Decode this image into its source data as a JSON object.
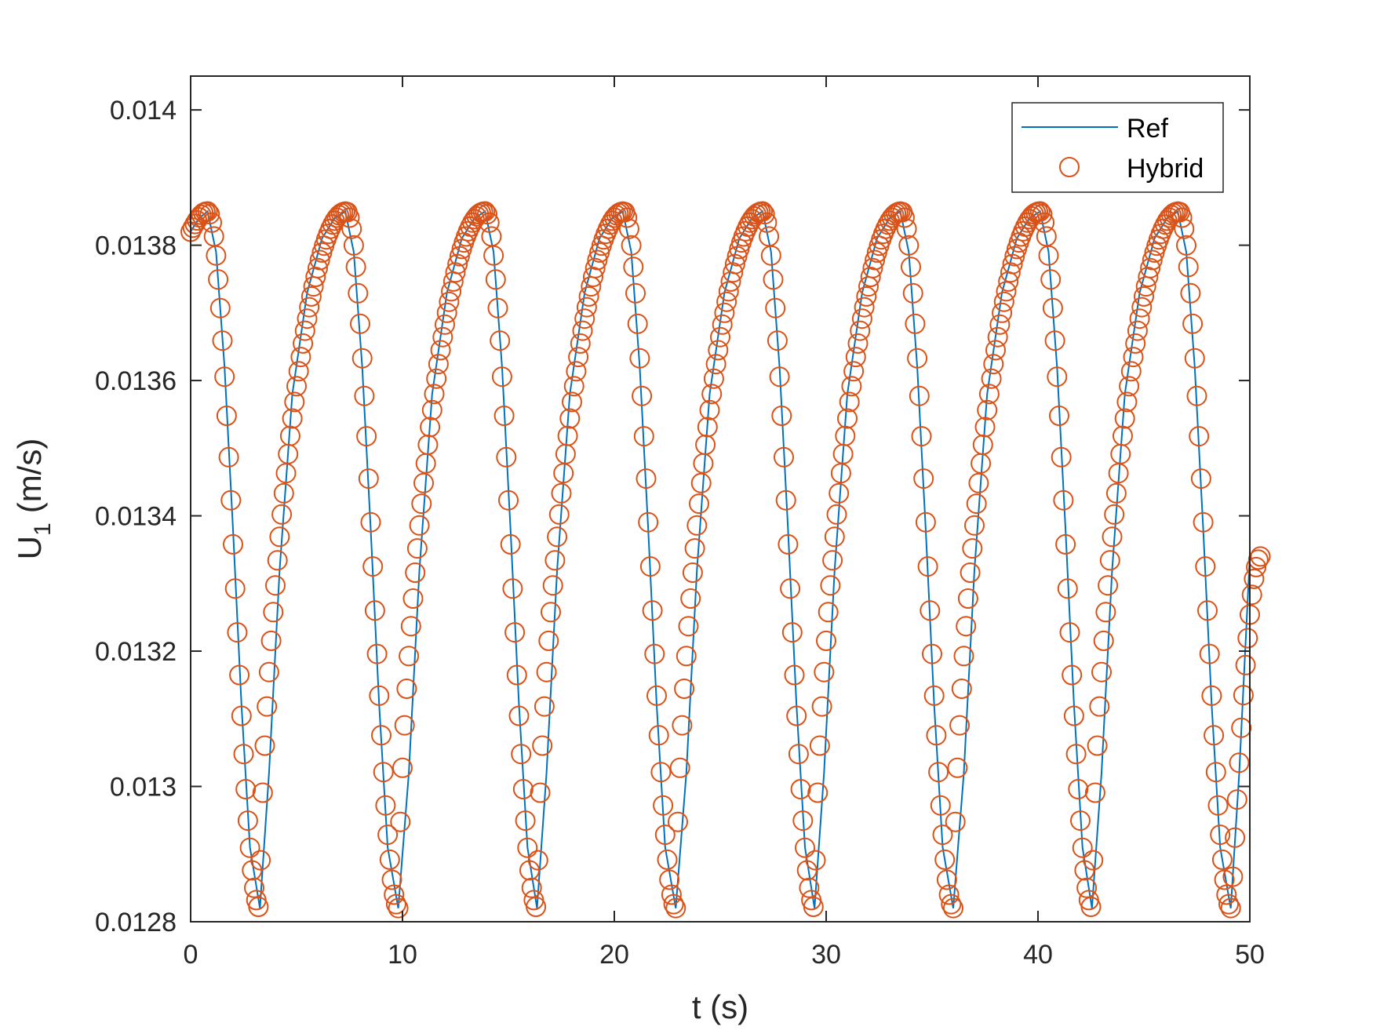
{
  "chart_data": {
    "type": "line",
    "title": "",
    "xlabel": "t (s)",
    "ylabel": "U",
    "ylabel_subscript": "1",
    "ylabel_unit": "(m/s)",
    "xlim": [
      0,
      50
    ],
    "ylim": [
      0.0128,
      0.01405
    ],
    "xticks": [
      0,
      10,
      20,
      30,
      40,
      50
    ],
    "xtick_labels": [
      "0",
      "10",
      "20",
      "30",
      "40",
      "50"
    ],
    "yticks": [
      0.0128,
      0.013,
      0.0132,
      0.0134,
      0.0136,
      0.0138,
      0.014
    ],
    "ytick_labels": [
      "0.0128",
      "0.013",
      "0.0132",
      "0.0134",
      "0.0136",
      "0.0138",
      "0.014"
    ],
    "grid": false,
    "legend_position": "top-right",
    "colors": {
      "ref": "#0072BD",
      "hybrid": "#D95319",
      "axis": "#262626"
    },
    "series": [
      {
        "name": "Ref",
        "style": "line",
        "x": [
          0,
          0.4,
          0.8,
          1.2,
          1.6,
          2.0,
          2.4,
          2.8,
          3.27,
          3.7,
          4.2,
          4.8,
          5.5,
          6.2,
          6.8,
          7.3,
          7.7,
          8.1,
          8.5,
          8.9,
          9.3,
          9.8,
          10.3,
          10.8,
          11.4,
          12.1,
          12.8,
          13.4,
          13.9,
          14.3,
          14.7,
          15.1,
          15.5,
          15.9,
          16.35,
          16.8,
          17.3,
          17.9,
          18.6,
          19.3,
          19.9,
          20.4,
          20.8,
          21.2,
          21.6,
          22.0,
          22.4,
          22.9,
          23.4,
          23.9,
          24.5,
          25.2,
          25.9,
          26.5,
          27.0,
          27.4,
          27.8,
          28.2,
          28.6,
          29.0,
          29.45,
          29.9,
          30.4,
          31.0,
          31.7,
          32.4,
          33.0,
          33.5,
          33.9,
          34.3,
          34.7,
          35.1,
          35.5,
          36.0,
          36.5,
          37.0,
          37.6,
          38.3,
          39.0,
          39.6,
          40.1,
          40.5,
          40.9,
          41.3,
          41.7,
          42.1,
          42.55,
          43.0,
          43.5,
          44.1,
          44.8,
          45.5,
          46.1,
          46.6,
          47.0,
          47.4,
          47.8,
          48.2,
          48.6,
          49.1,
          49.5,
          50.0
        ],
        "y": [
          0.01382,
          0.01384,
          0.01385,
          0.01379,
          0.01362,
          0.01338,
          0.01312,
          0.01291,
          0.01282,
          0.01302,
          0.01332,
          0.01358,
          0.01373,
          0.01381,
          0.01384,
          0.01385,
          0.01379,
          0.01362,
          0.01338,
          0.01312,
          0.01291,
          0.01282,
          0.01302,
          0.01332,
          0.01358,
          0.01373,
          0.01381,
          0.01384,
          0.01385,
          0.01379,
          0.01362,
          0.01338,
          0.01312,
          0.01291,
          0.01282,
          0.01302,
          0.01332,
          0.01358,
          0.01373,
          0.01381,
          0.01384,
          0.01385,
          0.01379,
          0.01362,
          0.01338,
          0.01312,
          0.01291,
          0.01282,
          0.01302,
          0.01332,
          0.01358,
          0.01373,
          0.01381,
          0.01384,
          0.01385,
          0.01379,
          0.01362,
          0.01338,
          0.01312,
          0.01291,
          0.01282,
          0.01302,
          0.01332,
          0.01358,
          0.01373,
          0.01381,
          0.01384,
          0.01385,
          0.01379,
          0.01362,
          0.01338,
          0.01312,
          0.01291,
          0.01282,
          0.01302,
          0.01332,
          0.01358,
          0.01373,
          0.01381,
          0.01384,
          0.01385,
          0.01379,
          0.01362,
          0.01338,
          0.01312,
          0.01291,
          0.01282,
          0.01302,
          0.01332,
          0.01358,
          0.01373,
          0.01381,
          0.01384,
          0.01385,
          0.01379,
          0.01362,
          0.01338,
          0.01312,
          0.01291,
          0.01282,
          0.01302,
          0.01334
        ]
      },
      {
        "name": "Hybrid",
        "style": "circle-markers",
        "sample_step": 0.1,
        "x_range": [
          0,
          50.5
        ],
        "period": 6.55,
        "min_times": [
          3.27,
          9.82,
          16.37,
          22.92,
          29.47,
          36.02,
          42.57,
          49.12
        ],
        "max_times": [
          0.8,
          7.35,
          13.9,
          20.45,
          27.0,
          33.55,
          40.1,
          46.65
        ],
        "min_value": 0.01282,
        "max_value": 0.01385,
        "start_value": 0.01382,
        "end_value": 0.01334
      }
    ]
  }
}
